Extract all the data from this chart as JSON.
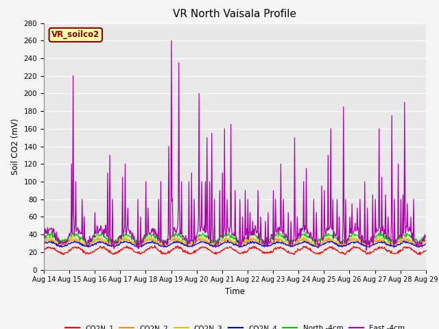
{
  "title": "VR North Vaisala Profile",
  "xlabel": "Time",
  "ylabel": "Soil CO2 (mV)",
  "ylim": [
    0,
    280
  ],
  "x_tick_labels": [
    "Aug 14",
    "Aug 15",
    "Aug 16",
    "Aug 17",
    "Aug 18",
    "Aug 19",
    "Aug 20",
    "Aug 21",
    "Aug 22",
    "Aug 23",
    "Aug 24",
    "Aug 25",
    "Aug 26",
    "Aug 27",
    "Aug 28",
    "Aug 29"
  ],
  "annotation_text": "VR_soilco2",
  "annotation_box_facecolor": "#FFFFAA",
  "annotation_box_edgecolor": "#8B0000",
  "legend_labels": [
    "CO2N_1",
    "CO2N_2",
    "CO2N_3",
    "CO2N_4",
    "North -4cm",
    "East -4cm"
  ],
  "legend_colors": [
    "#FF0000",
    "#FF8C00",
    "#CCCC00",
    "#0000CC",
    "#00CC00",
    "#AA00AA"
  ],
  "plot_bg_color": "#E8E8E8",
  "fig_bg_color": "#F5F5F5",
  "grid_color": "#FFFFFF",
  "title_fontsize": 11,
  "seed": 42,
  "n_days": 15,
  "pts_per_day": 48
}
